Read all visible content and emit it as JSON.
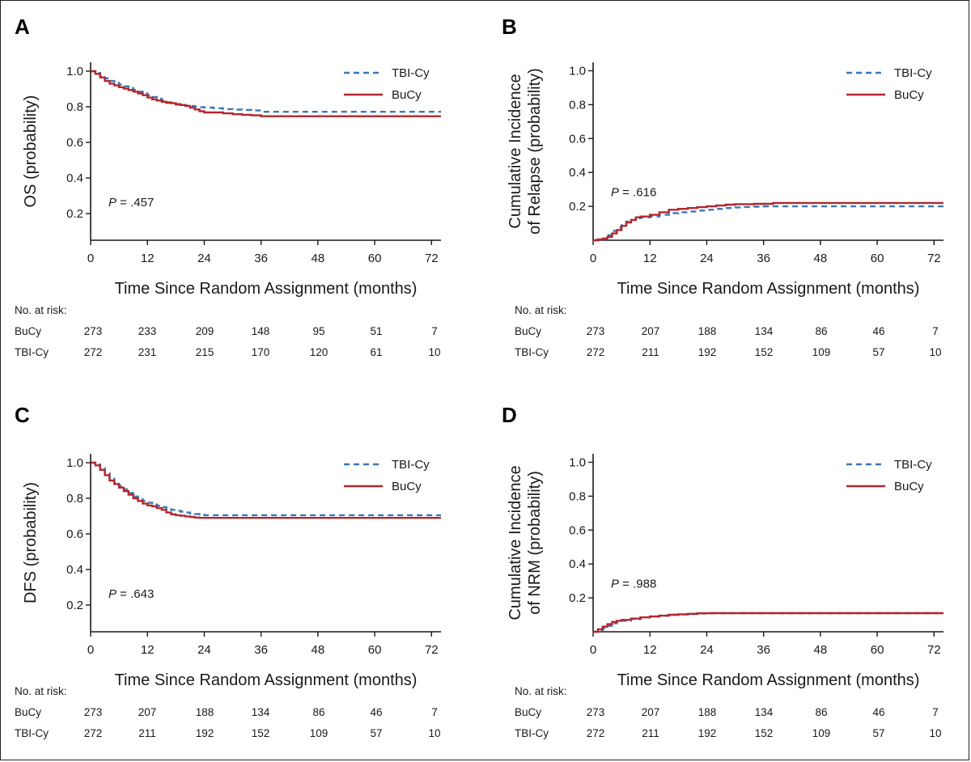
{
  "colors": {
    "tbi": "#3a78b5",
    "bucy": "#b2262e",
    "axis": "#1a1a1a"
  },
  "legend": {
    "tbi": "TBI-Cy",
    "bucy": "BuCy"
  },
  "risk_header": "No. at risk:",
  "chart_data": [
    {
      "type": "line",
      "panel": "A",
      "xlabel": "Time Since Random Assignment (months)",
      "ylabel": [
        "OS (probability)"
      ],
      "xlim": [
        0,
        74
      ],
      "ylim": [
        0.05,
        1.05
      ],
      "xticks": [
        0,
        12,
        24,
        36,
        48,
        60,
        72
      ],
      "yticks": [
        0.2,
        0.4,
        0.6,
        0.8,
        1.0
      ],
      "ytick_labels": [
        "0.2",
        "0.4",
        "0.6",
        "0.8",
        "1.0"
      ],
      "zero_label": false,
      "p_label": "P",
      "p_value": " = .457",
      "series": [
        {
          "name": "TBI-Cy",
          "style": "dashed",
          "x": [
            0,
            1,
            2,
            3,
            4,
            5,
            6,
            7,
            8,
            9,
            10,
            11,
            12,
            13,
            14,
            15,
            16,
            17,
            18,
            19,
            20,
            21,
            22,
            23,
            24,
            26,
            28,
            30,
            32,
            34,
            36,
            40,
            44,
            48,
            54,
            60,
            66,
            74
          ],
          "y": [
            1.0,
            0.99,
            0.975,
            0.96,
            0.945,
            0.935,
            0.925,
            0.915,
            0.905,
            0.895,
            0.885,
            0.875,
            0.865,
            0.855,
            0.845,
            0.835,
            0.825,
            0.818,
            0.812,
            0.81,
            0.807,
            0.804,
            0.801,
            0.798,
            0.796,
            0.792,
            0.787,
            0.784,
            0.782,
            0.779,
            0.772,
            0.772,
            0.772,
            0.772,
            0.772,
            0.772,
            0.772,
            0.772
          ]
        },
        {
          "name": "BuCy",
          "style": "solid",
          "x": [
            0,
            1,
            2,
            3,
            4,
            5,
            6,
            7,
            8,
            9,
            10,
            11,
            12,
            13,
            14,
            15,
            16,
            17,
            18,
            19,
            20,
            21,
            22,
            23,
            24,
            26,
            28,
            30,
            32,
            34,
            36,
            40,
            44,
            48,
            54,
            60,
            66,
            74
          ],
          "y": [
            1.0,
            0.985,
            0.965,
            0.945,
            0.93,
            0.92,
            0.91,
            0.902,
            0.894,
            0.885,
            0.875,
            0.865,
            0.852,
            0.842,
            0.835,
            0.828,
            0.822,
            0.82,
            0.815,
            0.81,
            0.805,
            0.795,
            0.785,
            0.775,
            0.768,
            0.768,
            0.763,
            0.758,
            0.755,
            0.752,
            0.747,
            0.747,
            0.747,
            0.747,
            0.747,
            0.747,
            0.747,
            0.747
          ]
        }
      ],
      "risk": {
        "rows": [
          {
            "label": "BuCy",
            "values": [
              "273",
              "233",
              "209",
              "148",
              "95",
              "51",
              "7"
            ]
          },
          {
            "label": "TBI-Cy",
            "values": [
              "272",
              "231",
              "215",
              "170",
              "120",
              "61",
              "10"
            ]
          }
        ]
      }
    },
    {
      "type": "line",
      "panel": "B",
      "xlabel": "Time Since Random Assignment (months)",
      "ylabel": [
        "Cumulative Incidence",
        "of Relapse (probability)"
      ],
      "xlim": [
        0,
        74
      ],
      "ylim": [
        0,
        1.05
      ],
      "xticks": [
        0,
        12,
        24,
        36,
        48,
        60,
        72
      ],
      "yticks": [
        0.2,
        0.4,
        0.6,
        0.8,
        1.0
      ],
      "ytick_labels": [
        "0.2",
        "0.4",
        "0.6",
        "0.8",
        "1.0"
      ],
      "zero_label": false,
      "p_label": "P",
      "p_value": " = .616",
      "series": [
        {
          "name": "TBI-Cy",
          "style": "dashed",
          "x": [
            0,
            1,
            2,
            3,
            4,
            5,
            6,
            7,
            8,
            9,
            10,
            12,
            14,
            16,
            18,
            20,
            22,
            24,
            26,
            28,
            30,
            32,
            34,
            36,
            42,
            48,
            60,
            74
          ],
          "y": [
            0,
            0.005,
            0.01,
            0.03,
            0.055,
            0.075,
            0.095,
            0.11,
            0.12,
            0.13,
            0.135,
            0.14,
            0.15,
            0.16,
            0.165,
            0.17,
            0.175,
            0.18,
            0.185,
            0.19,
            0.194,
            0.196,
            0.198,
            0.2,
            0.2,
            0.2,
            0.2,
            0.2
          ]
        },
        {
          "name": "BuCy",
          "style": "solid",
          "x": [
            0,
            1,
            2,
            3,
            4,
            5,
            6,
            7,
            8,
            9,
            10,
            12,
            14,
            16,
            18,
            20,
            22,
            24,
            26,
            28,
            30,
            34,
            38,
            48,
            60,
            74
          ],
          "y": [
            0,
            0.005,
            0.01,
            0.02,
            0.04,
            0.06,
            0.085,
            0.105,
            0.12,
            0.135,
            0.14,
            0.15,
            0.165,
            0.18,
            0.185,
            0.19,
            0.195,
            0.2,
            0.205,
            0.21,
            0.213,
            0.215,
            0.22,
            0.22,
            0.22,
            0.22
          ]
        }
      ],
      "risk": {
        "rows": [
          {
            "label": "BuCy",
            "values": [
              "273",
              "207",
              "188",
              "134",
              "86",
              "46",
              "7"
            ]
          },
          {
            "label": "TBI-Cy",
            "values": [
              "272",
              "211",
              "192",
              "152",
              "109",
              "57",
              "10"
            ]
          }
        ]
      }
    },
    {
      "type": "line",
      "panel": "C",
      "xlabel": "Time Since Random Assignment (months)",
      "ylabel": [
        "DFS (probability)"
      ],
      "xlim": [
        0,
        74
      ],
      "ylim": [
        0.05,
        1.05
      ],
      "xticks": [
        0,
        12,
        24,
        36,
        48,
        60,
        72
      ],
      "yticks": [
        0.2,
        0.4,
        0.6,
        0.8,
        1.0
      ],
      "ytick_labels": [
        "0.2",
        "0.4",
        "0.6",
        "0.8",
        "1.0"
      ],
      "zero_label": false,
      "p_label": "P",
      "p_value": " = .643",
      "series": [
        {
          "name": "TBI-Cy",
          "style": "dashed",
          "x": [
            0,
            1,
            2,
            3,
            4,
            5,
            6,
            7,
            8,
            9,
            10,
            11,
            12,
            13,
            14,
            15,
            16,
            17,
            18,
            19,
            20,
            21,
            22,
            23,
            24,
            30,
            36,
            48,
            60,
            74
          ],
          "y": [
            1.0,
            0.99,
            0.97,
            0.94,
            0.91,
            0.89,
            0.87,
            0.85,
            0.83,
            0.81,
            0.795,
            0.785,
            0.775,
            0.765,
            0.758,
            0.75,
            0.74,
            0.735,
            0.73,
            0.725,
            0.72,
            0.715,
            0.712,
            0.708,
            0.705,
            0.705,
            0.705,
            0.705,
            0.705,
            0.705
          ]
        },
        {
          "name": "BuCy",
          "style": "solid",
          "x": [
            0,
            1,
            2,
            3,
            4,
            5,
            6,
            7,
            8,
            9,
            10,
            11,
            12,
            13,
            14,
            15,
            16,
            17,
            18,
            19,
            20,
            21,
            22,
            23,
            24,
            30,
            36,
            48,
            60,
            74
          ],
          "y": [
            1.0,
            0.985,
            0.96,
            0.93,
            0.9,
            0.88,
            0.86,
            0.84,
            0.82,
            0.8,
            0.785,
            0.77,
            0.76,
            0.755,
            0.745,
            0.735,
            0.72,
            0.71,
            0.705,
            0.702,
            0.698,
            0.695,
            0.692,
            0.69,
            0.69,
            0.69,
            0.69,
            0.69,
            0.69,
            0.69
          ]
        }
      ],
      "risk": {
        "rows": [
          {
            "label": "BuCy",
            "values": [
              "273",
              "207",
              "188",
              "134",
              "86",
              "46",
              "7"
            ]
          },
          {
            "label": "TBI-Cy",
            "values": [
              "272",
              "211",
              "192",
              "152",
              "109",
              "57",
              "10"
            ]
          }
        ]
      }
    },
    {
      "type": "line",
      "panel": "D",
      "xlabel": "Time Since Random Assignment (months)",
      "ylabel": [
        "Cumulative Incidence",
        "of NRM (probability)"
      ],
      "xlim": [
        0,
        74
      ],
      "ylim": [
        0,
        1.05
      ],
      "xticks": [
        0,
        12,
        24,
        36,
        48,
        60,
        72
      ],
      "yticks": [
        0.2,
        0.4,
        0.6,
        0.8,
        1.0
      ],
      "ytick_labels": [
        "0.2",
        "0.4",
        "0.6",
        "0.8",
        "1.0"
      ],
      "zero_label": true,
      "p_label": "P",
      "p_value": " = .988",
      "series": [
        {
          "name": "TBI-Cy",
          "style": "dashed",
          "x": [
            0,
            1,
            2,
            3,
            4,
            5,
            6,
            8,
            10,
            12,
            14,
            16,
            18,
            20,
            22,
            24,
            36,
            48,
            60,
            74
          ],
          "y": [
            0,
            0.01,
            0.02,
            0.035,
            0.05,
            0.058,
            0.065,
            0.075,
            0.085,
            0.09,
            0.095,
            0.1,
            0.102,
            0.105,
            0.108,
            0.11,
            0.11,
            0.11,
            0.11,
            0.11
          ]
        },
        {
          "name": "BuCy",
          "style": "solid",
          "x": [
            0,
            1,
            2,
            3,
            4,
            5,
            6,
            8,
            10,
            12,
            14,
            16,
            18,
            20,
            22,
            24,
            36,
            48,
            60,
            74
          ],
          "y": [
            0,
            0.015,
            0.03,
            0.045,
            0.058,
            0.065,
            0.07,
            0.078,
            0.085,
            0.09,
            0.095,
            0.1,
            0.103,
            0.106,
            0.109,
            0.11,
            0.11,
            0.11,
            0.11,
            0.11
          ]
        }
      ],
      "risk": {
        "rows": [
          {
            "label": "BuCy",
            "values": [
              "273",
              "207",
              "188",
              "134",
              "86",
              "46",
              "7"
            ]
          },
          {
            "label": "TBI-Cy",
            "values": [
              "272",
              "211",
              "192",
              "152",
              "109",
              "57",
              "10"
            ]
          }
        ]
      }
    }
  ]
}
